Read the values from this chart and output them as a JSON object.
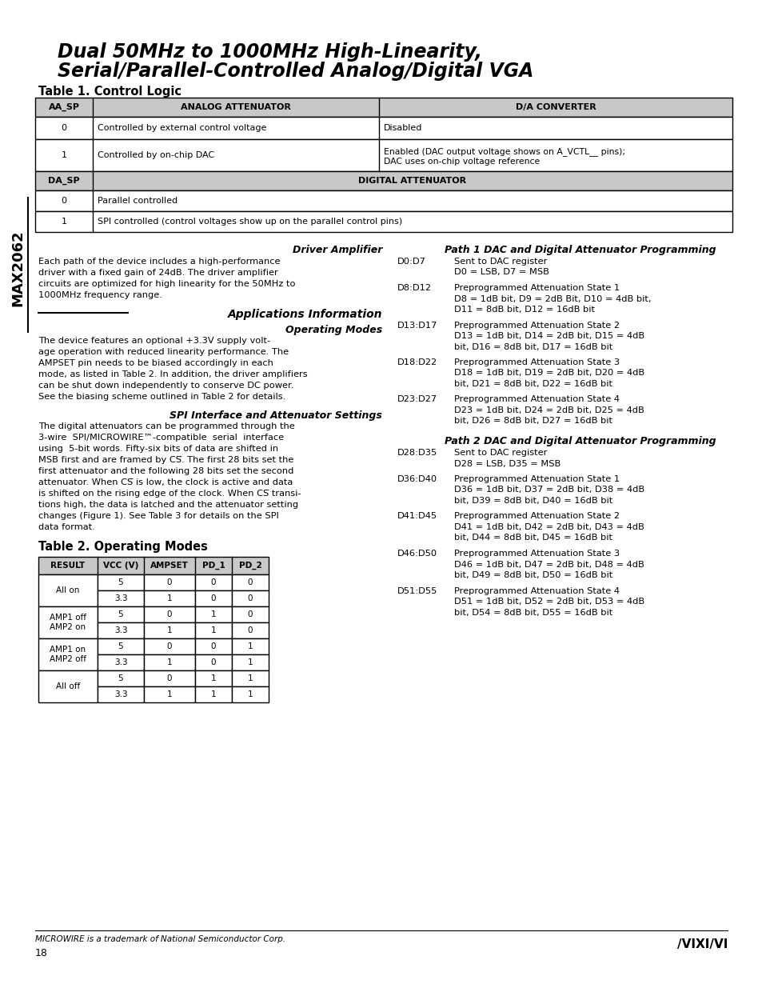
{
  "title_line1": "Dual 50MHz to 1000MHz High-Linearity,",
  "title_line2": "Serial/Parallel-Controlled Analog/Digital VGA",
  "sidebar_text": "MAX2062",
  "table1_title": "Table 1. Control Logic",
  "table1_headers": [
    "AA_SP",
    "ANALOG ATTENUATOR",
    "D/A CONVERTER"
  ],
  "table1_header2": [
    "DA_SP",
    "DIGITAL ATTENUATOR"
  ],
  "table1_rows": [
    [
      "0",
      "Controlled by external control voltage",
      "Disabled"
    ],
    [
      "1",
      "Controlled by on-chip DAC",
      "Enabled (DAC output voltage shows on A_VCTL__ pins);\nDAC uses on-chip voltage reference"
    ]
  ],
  "table1_rows2": [
    [
      "0",
      "Parallel controlled"
    ],
    [
      "1",
      "SPI controlled (control voltages show up on the parallel control pins)"
    ]
  ],
  "path1_heading": "Path 1 DAC and Digital Attenuator Programming",
  "path1_entries": [
    {
      "label": "D0:D7",
      "line1": "Sent to DAC register",
      "line2": "D0 = LSB, D7 = MSB",
      "line3": ""
    },
    {
      "label": "D8:D12",
      "line1": "Preprogrammed Attenuation State 1",
      "line2": "D8 = 1dB bit, D9 = 2dB Bit, D10 = 4dB bit,",
      "line3": "D11 = 8dB bit, D12 = 16dB bit"
    },
    {
      "label": "D13:D17",
      "line1": "Preprogrammed Attenuation State 2",
      "line2": "D13 = 1dB bit, D14 = 2dB bit, D15 = 4dB",
      "line3": "bit, D16 = 8dB bit, D17 = 16dB bit"
    },
    {
      "label": "D18:D22",
      "line1": "Preprogrammed Attenuation State 3",
      "line2": "D18 = 1dB bit, D19 = 2dB bit, D20 = 4dB",
      "line3": "bit, D21 = 8dB bit, D22 = 16dB bit"
    },
    {
      "label": "D23:D27",
      "line1": "Preprogrammed Attenuation State 4",
      "line2": "D23 = 1dB bit, D24 = 2dB bit, D25 = 4dB",
      "line3": "bit, D26 = 8dB bit, D27 = 16dB bit"
    }
  ],
  "path2_heading": "Path 2 DAC and Digital Attenuator Programming",
  "path2_entries": [
    {
      "label": "D28:D35",
      "line1": "Sent to DAC register",
      "line2": "D28 = LSB, D35 = MSB",
      "line3": ""
    },
    {
      "label": "D36:D40",
      "line1": "Preprogrammed Attenuation State 1",
      "line2": "D36 = 1dB bit, D37 = 2dB bit, D38 = 4dB",
      "line3": "bit, D39 = 8dB bit, D40 = 16dB bit"
    },
    {
      "label": "D41:D45",
      "line1": "Preprogrammed Attenuation State 2",
      "line2": "D41 = 1dB bit, D42 = 2dB bit, D43 = 4dB",
      "line3": "bit, D44 = 8dB bit, D45 = 16dB bit"
    },
    {
      "label": "D46:D50",
      "line1": "Preprogrammed Attenuation State 3",
      "line2": "D46 = 1dB bit, D47 = 2dB bit, D48 = 4dB",
      "line3": "bit, D49 = 8dB bit, D50 = 16dB bit"
    },
    {
      "label": "D51:D55",
      "line1": "Preprogrammed Attenuation State 4",
      "line2": "D51 = 1dB bit, D52 = 2dB bit, D53 = 4dB",
      "line3": "bit, D54 = 8dB bit, D55 = 16dB bit"
    }
  ],
  "table2_headers": [
    "RESULT",
    "VCC (V)",
    "AMPSET",
    "PD_1",
    "PD_2"
  ],
  "table2_groups": [
    {
      "label": "All on",
      "row1": [
        "5",
        "0",
        "0",
        "0"
      ],
      "row2": [
        "3.3",
        "1",
        "0",
        "0"
      ]
    },
    {
      "label": "AMP1 off\nAMP2 on",
      "row1": [
        "5",
        "0",
        "1",
        "0"
      ],
      "row2": [
        "3.3",
        "1",
        "1",
        "0"
      ]
    },
    {
      "label": "AMP1 on\nAMP2 off",
      "row1": [
        "5",
        "0",
        "0",
        "1"
      ],
      "row2": [
        "3.3",
        "1",
        "0",
        "1"
      ]
    },
    {
      "label": "All off",
      "row1": [
        "5",
        "0",
        "1",
        "1"
      ],
      "row2": [
        "3.3",
        "1",
        "1",
        "1"
      ]
    }
  ],
  "footer_note": "MICROWIRE is a trademark of National Semiconductor Corp.",
  "page_number": "18",
  "bg_color": "#ffffff",
  "header_bg": "#c8c8c8"
}
